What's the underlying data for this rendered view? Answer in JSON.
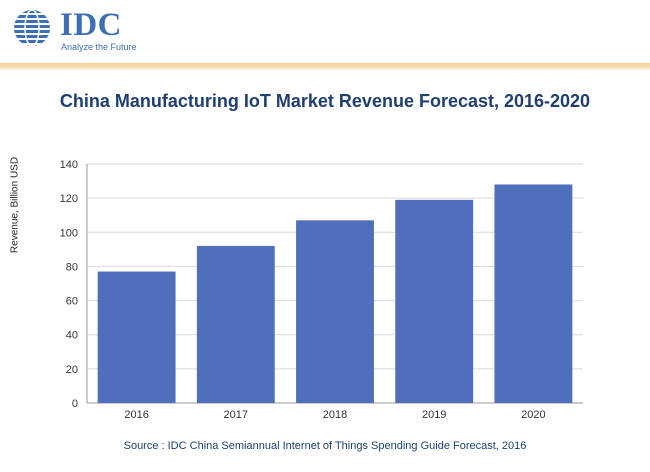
{
  "brand": {
    "name": "IDC",
    "tagline": "Analyze the Future",
    "logo_icon": "globe-icon",
    "accent": "#3d6fb6"
  },
  "chart_data": {
    "type": "bar",
    "title": "China Manufacturing IoT Market Revenue Forecast, 2016-2020",
    "xlabel": "",
    "ylabel": "Revenue, Billion USD",
    "categories": [
      "2016",
      "2017",
      "2018",
      "2019",
      "2020"
    ],
    "values": [
      77,
      92,
      107,
      119,
      128
    ],
    "ylim": [
      0,
      140
    ],
    "yticks": [
      "0",
      "20",
      "40",
      "60",
      "80",
      "100",
      "120",
      "140"
    ],
    "grid": true,
    "legend": "none",
    "bar_color": "#4f6fbd"
  },
  "source": "Source : IDC China Semiannual Internet of Things Spending Guide Forecast, 2016"
}
